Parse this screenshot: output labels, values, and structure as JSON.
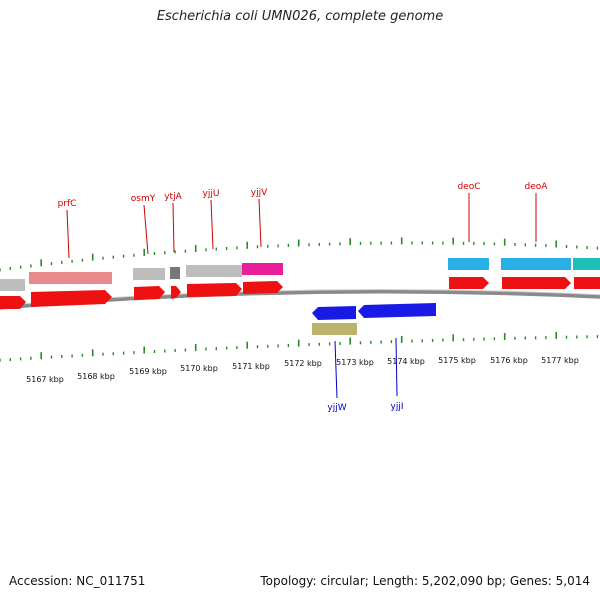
{
  "title": "Escherichia coli UMN026, complete genome",
  "accession_text": "Accession: NC_011751",
  "summary_text": "Topology: circular; Length: 5,202,090 bp; Genes: 5,014",
  "colors": {
    "forward_label": "#cc0000",
    "reverse_label": "#0000cc",
    "tick": "#2a8a2a",
    "backbone": "#888888"
  },
  "scale": {
    "unit": "kbp",
    "labels": [
      "5167 kbp",
      "5168 kbp",
      "5169 kbp",
      "5170 kbp",
      "5171 kbp",
      "5172 kbp",
      "5173 kbp",
      "5174 kbp",
      "5175 kbp",
      "5176 kbp",
      "5177 kbp"
    ]
  },
  "gene_labels_forward": [
    "prfC",
    "osmY",
    "ytjA",
    "yjjU",
    "yjjV",
    "deoC",
    "deoA"
  ],
  "gene_labels_reverse": [
    "yjjW",
    "yjjI"
  ]
}
